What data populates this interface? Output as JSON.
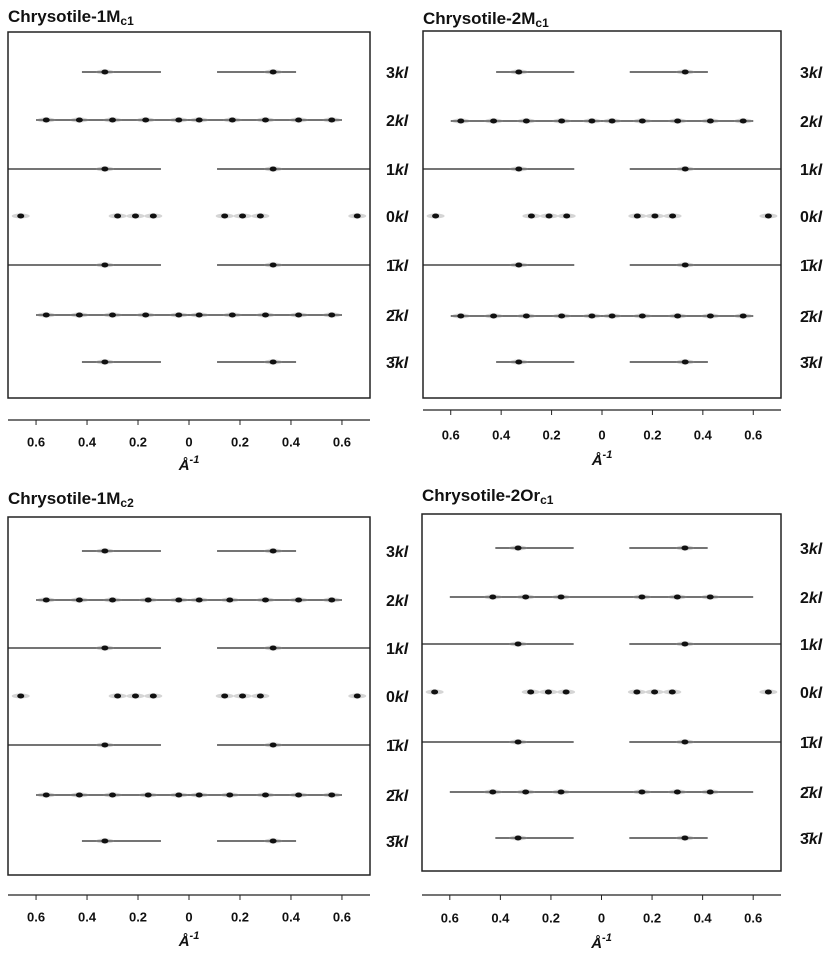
{
  "chart_data": [
    {
      "type": "diffraction",
      "title": "Chrysotile-1M",
      "title_sub": "c1",
      "xlabel": "Å",
      "xlabel_sup": "-1",
      "xlim": [
        -0.71,
        0.71
      ],
      "xticks": [
        {
          "value": -0.6,
          "label": "0.6"
        },
        {
          "value": -0.4,
          "label": "0.4"
        },
        {
          "value": -0.2,
          "label": "0.2"
        },
        0,
        0.2,
        0.4,
        0.6
      ],
      "rows": [
        {
          "h": "3",
          "kl": "kl",
          "streaks": [
            [
              -0.42,
              -0.11
            ],
            [
              0.11,
              0.42
            ]
          ],
          "spots": [
            -0.33,
            0.33
          ]
        },
        {
          "h": "2",
          "kl": "kl",
          "streaks": [
            [
              -0.6,
              0.6
            ]
          ],
          "spots": [
            -0.56,
            -0.43,
            -0.3,
            -0.17,
            -0.04,
            0.04,
            0.17,
            0.3,
            0.43,
            0.56
          ]
        },
        {
          "h": "1",
          "kl": "kl",
          "streaks": [
            [
              -0.71,
              -0.11
            ],
            [
              0.11,
              0.71
            ]
          ],
          "spots": [
            -0.33,
            0.33
          ]
        },
        {
          "h": "0",
          "kl": "kl",
          "streaks": [],
          "spots": [
            -0.66,
            -0.28,
            -0.21,
            -0.14,
            0.14,
            0.21,
            0.28,
            0.66
          ]
        },
        {
          "h": "1̄",
          "kl": "kl",
          "streaks": [
            [
              -0.71,
              -0.11
            ],
            [
              0.11,
              0.71
            ]
          ],
          "spots": [
            -0.33,
            0.33
          ]
        },
        {
          "h": "2̄",
          "kl": "kl",
          "streaks": [
            [
              -0.6,
              0.6
            ]
          ],
          "spots": [
            -0.56,
            -0.43,
            -0.3,
            -0.17,
            -0.04,
            0.04,
            0.17,
            0.3,
            0.43,
            0.56
          ]
        },
        {
          "h": "3̄",
          "kl": "kl",
          "streaks": [
            [
              -0.42,
              -0.11
            ],
            [
              0.11,
              0.42
            ]
          ],
          "spots": [
            -0.33,
            0.33
          ]
        }
      ]
    },
    {
      "type": "diffraction",
      "title": "Chrysotile-2M",
      "title_sub": "c1",
      "xlabel": "Å",
      "xlabel_sup": "-1",
      "xlim": [
        -0.71,
        0.71
      ],
      "xticks": [
        {
          "value": -0.6,
          "label": "0.6"
        },
        {
          "value": -0.4,
          "label": "0.4"
        },
        {
          "value": -0.2,
          "label": "0.2"
        },
        0,
        0.2,
        0.4,
        0.6
      ],
      "rows": [
        {
          "h": "3",
          "kl": "kl",
          "streaks": [
            [
              -0.42,
              -0.11
            ],
            [
              0.11,
              0.42
            ]
          ],
          "spots": [
            -0.33,
            0.33
          ]
        },
        {
          "h": "2",
          "kl": "kl",
          "streaks": [
            [
              -0.6,
              0.6
            ]
          ],
          "spots": [
            -0.56,
            -0.43,
            -0.3,
            -0.16,
            -0.04,
            0.04,
            0.16,
            0.3,
            0.43,
            0.56
          ]
        },
        {
          "h": "1",
          "kl": "kl",
          "streaks": [
            [
              -0.71,
              -0.11
            ],
            [
              0.11,
              0.71
            ]
          ],
          "spots": [
            -0.33,
            0.33
          ]
        },
        {
          "h": "0",
          "kl": "kl",
          "streaks": [],
          "spots": [
            -0.66,
            -0.28,
            -0.21,
            -0.14,
            0.14,
            0.21,
            0.28,
            0.66
          ]
        },
        {
          "h": "1̄",
          "kl": "kl",
          "streaks": [
            [
              -0.71,
              -0.11
            ],
            [
              0.11,
              0.71
            ]
          ],
          "spots": [
            -0.33,
            0.33
          ]
        },
        {
          "h": "2̄",
          "kl": "kl",
          "streaks": [
            [
              -0.6,
              0.6
            ]
          ],
          "spots": [
            -0.56,
            -0.43,
            -0.3,
            -0.16,
            -0.04,
            0.04,
            0.16,
            0.3,
            0.43,
            0.56
          ]
        },
        {
          "h": "3̄",
          "kl": "kl",
          "streaks": [
            [
              -0.42,
              -0.11
            ],
            [
              0.11,
              0.42
            ]
          ],
          "spots": [
            -0.33,
            0.33
          ]
        }
      ]
    },
    {
      "type": "diffraction",
      "title": "Chrysotile-1M",
      "title_sub": "c2",
      "xlabel": "Å",
      "xlabel_sup": "-1",
      "xlim": [
        -0.71,
        0.71
      ],
      "xticks": [
        {
          "value": -0.6,
          "label": "0.6"
        },
        {
          "value": -0.4,
          "label": "0.4"
        },
        {
          "value": -0.2,
          "label": "0.2"
        },
        0,
        0.2,
        0.4,
        0.6
      ],
      "rows": [
        {
          "h": "3",
          "kl": "kl",
          "streaks": [
            [
              -0.42,
              -0.11
            ],
            [
              0.11,
              0.42
            ]
          ],
          "spots": [
            -0.33,
            0.33
          ]
        },
        {
          "h": "2",
          "kl": "kl",
          "streaks": [
            [
              -0.6,
              0.6
            ]
          ],
          "spots": [
            -0.56,
            -0.43,
            -0.3,
            -0.16,
            -0.04,
            0.04,
            0.16,
            0.3,
            0.43,
            0.56
          ]
        },
        {
          "h": "1",
          "kl": "kl",
          "streaks": [
            [
              -0.71,
              -0.11
            ],
            [
              0.11,
              0.71
            ]
          ],
          "spots": [
            -0.33,
            0.33
          ]
        },
        {
          "h": "0",
          "kl": "kl",
          "streaks": [],
          "spots": [
            -0.66,
            -0.28,
            -0.21,
            -0.14,
            0.14,
            0.21,
            0.28,
            0.66
          ]
        },
        {
          "h": "1̄",
          "kl": "kl",
          "streaks": [
            [
              -0.71,
              -0.11
            ],
            [
              0.11,
              0.71
            ]
          ],
          "spots": [
            -0.33,
            0.33
          ]
        },
        {
          "h": "2̄",
          "kl": "kl",
          "streaks": [
            [
              -0.6,
              0.6
            ]
          ],
          "spots": [
            -0.56,
            -0.43,
            -0.3,
            -0.16,
            -0.04,
            0.04,
            0.16,
            0.3,
            0.43,
            0.56
          ]
        },
        {
          "h": "3̄",
          "kl": "kl",
          "streaks": [
            [
              -0.42,
              -0.11
            ],
            [
              0.11,
              0.42
            ]
          ],
          "spots": [
            -0.33,
            0.33
          ]
        }
      ]
    },
    {
      "type": "diffraction",
      "title": "Chrysotile-2Or",
      "title_sub": "c1",
      "xlabel": "Å",
      "xlabel_sup": "-1",
      "xlim": [
        -0.71,
        0.71
      ],
      "xticks": [
        {
          "value": -0.6,
          "label": "0.6"
        },
        {
          "value": -0.4,
          "label": "0.4"
        },
        {
          "value": -0.2,
          "label": "0.2"
        },
        0,
        0.2,
        0.4,
        0.6
      ],
      "rows": [
        {
          "h": "3",
          "kl": "kl",
          "streaks": [
            [
              -0.42,
              -0.11
            ],
            [
              0.11,
              0.42
            ]
          ],
          "spots": [
            -0.33,
            0.33
          ]
        },
        {
          "h": "2",
          "kl": "kl",
          "streaks": [
            [
              -0.6,
              0.6
            ]
          ],
          "spots": [
            -0.43,
            -0.3,
            -0.16,
            0.16,
            0.3,
            0.43
          ]
        },
        {
          "h": "1",
          "kl": "kl",
          "streaks": [
            [
              -0.71,
              -0.11
            ],
            [
              0.11,
              0.71
            ]
          ],
          "spots": [
            -0.33,
            0.33
          ]
        },
        {
          "h": "0",
          "kl": "kl",
          "streaks": [],
          "spots": [
            -0.66,
            -0.28,
            -0.21,
            -0.14,
            0.14,
            0.21,
            0.28,
            0.66
          ]
        },
        {
          "h": "1̄",
          "kl": "kl",
          "streaks": [
            [
              -0.71,
              -0.11
            ],
            [
              0.11,
              0.71
            ]
          ],
          "spots": [
            -0.33,
            0.33
          ]
        },
        {
          "h": "2̄",
          "kl": "kl",
          "streaks": [
            [
              -0.6,
              0.6
            ]
          ],
          "spots": [
            -0.43,
            -0.3,
            -0.16,
            0.16,
            0.3,
            0.43
          ]
        },
        {
          "h": "3̄",
          "kl": "kl",
          "streaks": [
            [
              -0.42,
              -0.11
            ],
            [
              0.11,
              0.42
            ]
          ],
          "spots": [
            -0.33,
            0.33
          ]
        }
      ]
    }
  ]
}
